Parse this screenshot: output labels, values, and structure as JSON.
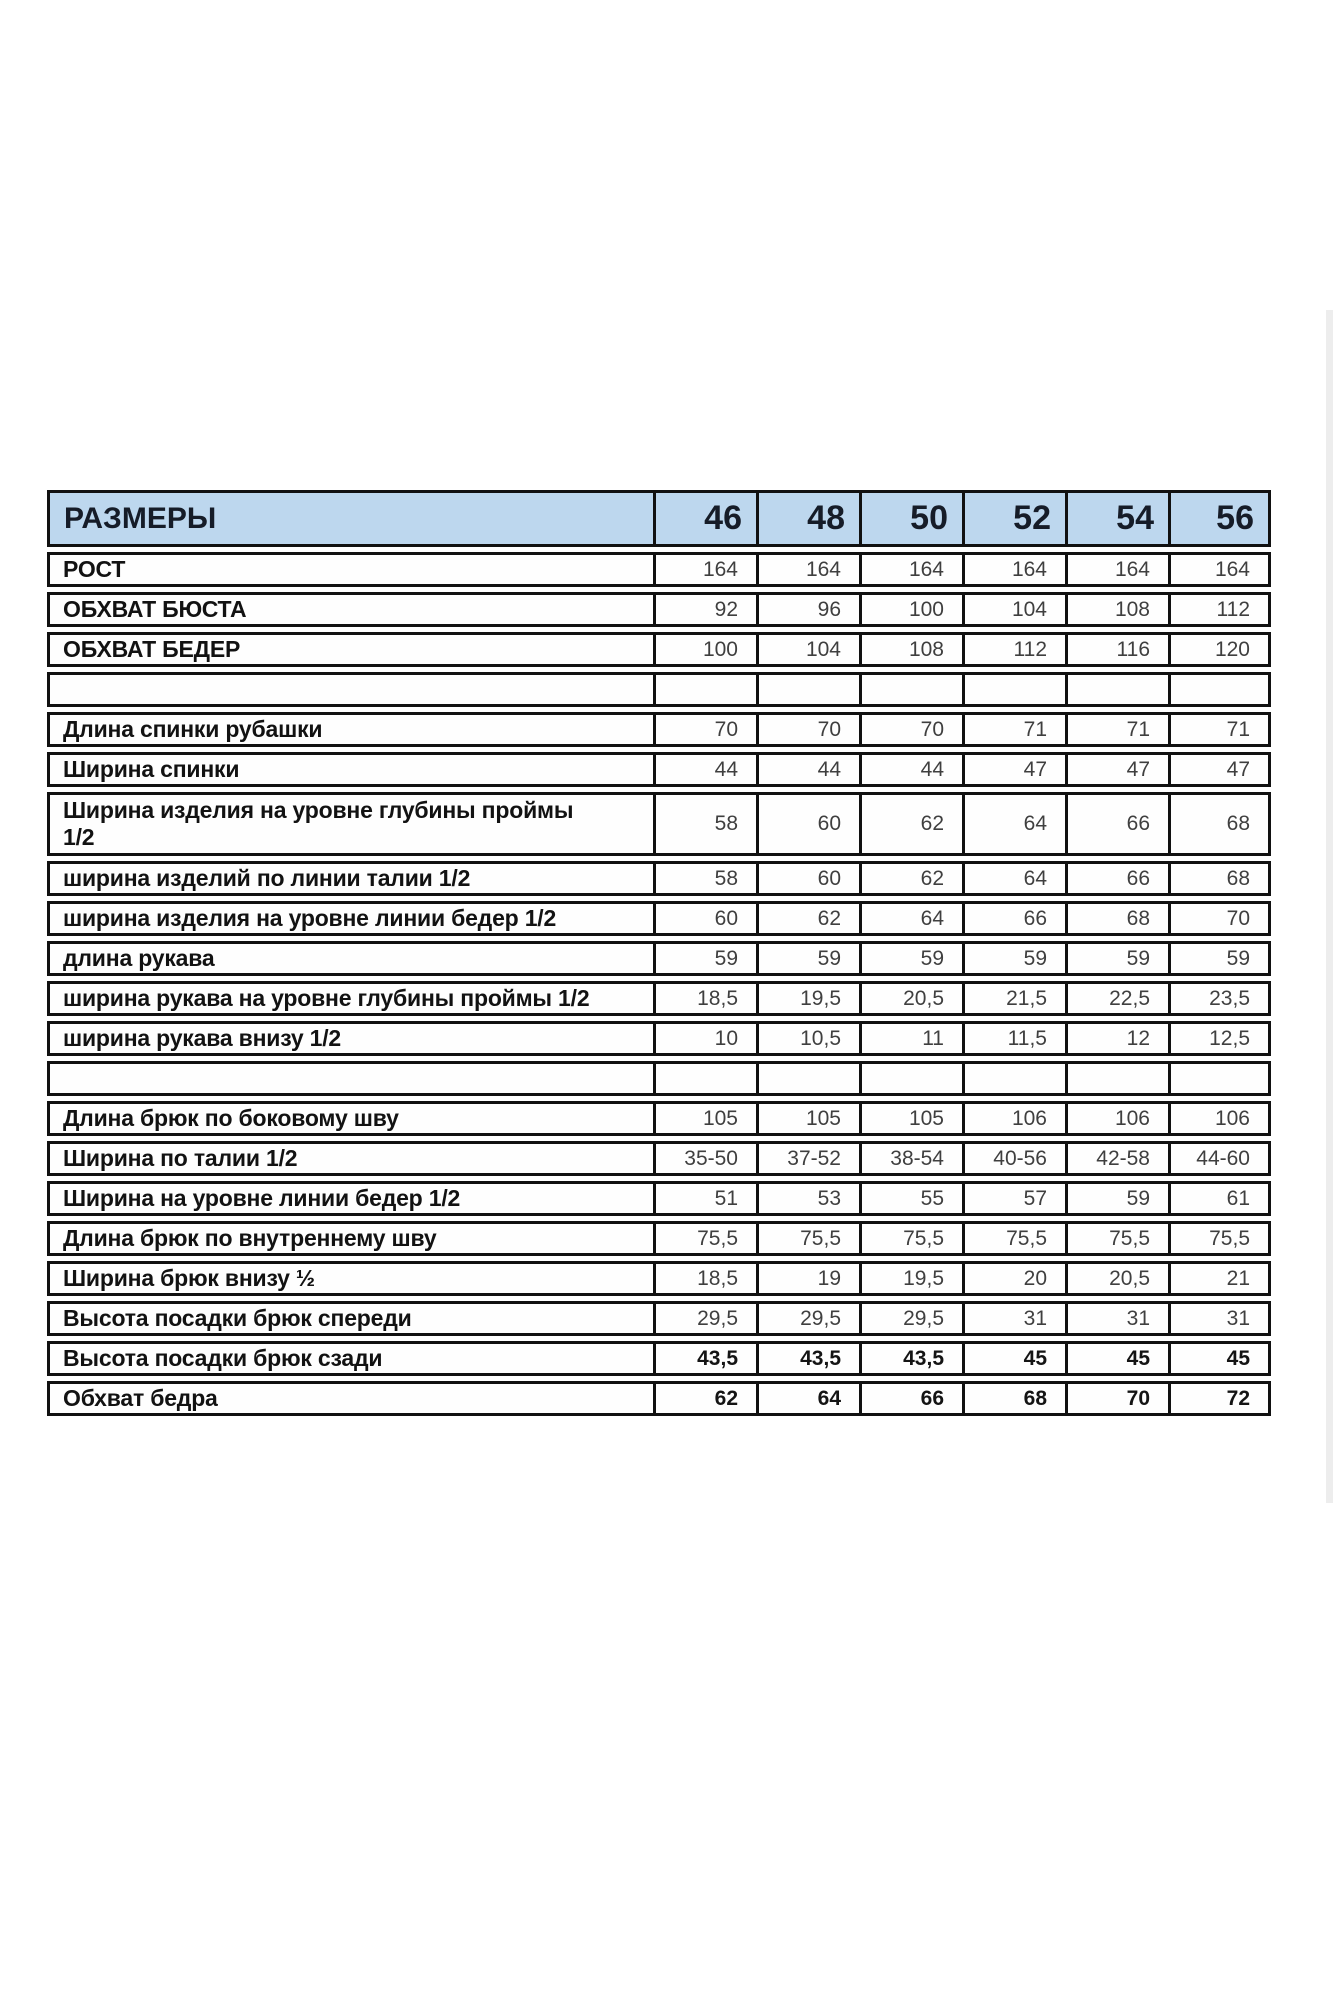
{
  "colors": {
    "page_bg": "#ffffff",
    "border": "#111111",
    "cell_bg": "#fefefe",
    "header_bg": "#bdd7ee",
    "header_text": "#161c28",
    "label_text": "#121212",
    "value_text": "#3f3f3f",
    "bold_value_text": "#141414",
    "artifact": "#ededed"
  },
  "chart_data": {
    "type": "table",
    "title": "РАЗМЕРЫ",
    "header": {
      "label": "РАЗМЕРЫ",
      "sizes": [
        "46",
        "48",
        "50",
        "52",
        "54",
        "56"
      ]
    },
    "rows": [
      {
        "label": "РОСТ",
        "values": [
          "164",
          "164",
          "164",
          "164",
          "164",
          "164"
        ]
      },
      {
        "label": "ОБХВАТ БЮСТА",
        "values": [
          "92",
          "96",
          "100",
          "104",
          "108",
          "112"
        ]
      },
      {
        "label": "ОБХВАТ БЕДЕР",
        "values": [
          "100",
          "104",
          "108",
          "112",
          "116",
          "120"
        ]
      },
      {
        "spacer": true,
        "label": "",
        "values": [
          "",
          "",
          "",
          "",
          "",
          ""
        ]
      },
      {
        "label": "Длина спинки рубашки",
        "values": [
          "70",
          "70",
          "70",
          "71",
          "71",
          "71"
        ]
      },
      {
        "label": "Ширина спинки",
        "values": [
          "44",
          "44",
          "44",
          "47",
          "47",
          "47"
        ]
      },
      {
        "label": "Ширина изделия на уровне глубины проймы\n1/2",
        "tall": true,
        "values": [
          "58",
          "60",
          "62",
          "64",
          "66",
          "68"
        ]
      },
      {
        "label": "ширина изделий по линии талии 1/2",
        "values": [
          "58",
          "60",
          "62",
          "64",
          "66",
          "68"
        ]
      },
      {
        "label": "ширина изделия на уровне линии бедер 1/2",
        "values": [
          "60",
          "62",
          "64",
          "66",
          "68",
          "70"
        ]
      },
      {
        "label": "длина рукава",
        "values": [
          "59",
          "59",
          "59",
          "59",
          "59",
          "59"
        ]
      },
      {
        "label": "ширина рукава на уровне глубины проймы 1/2",
        "values": [
          "18,5",
          "19,5",
          "20,5",
          "21,5",
          "22,5",
          "23,5"
        ]
      },
      {
        "label": "ширина рукава внизу 1/2",
        "values": [
          "10",
          "10,5",
          "11",
          "11,5",
          "12",
          "12,5"
        ]
      },
      {
        "spacer": true,
        "label": "",
        "values": [
          "",
          "",
          "",
          "",
          "",
          ""
        ]
      },
      {
        "label": "Длина брюк по боковому шву",
        "values": [
          "105",
          "105",
          "105",
          "106",
          "106",
          "106"
        ]
      },
      {
        "label": "Ширина по талии 1/2",
        "values": [
          "35-50",
          "37-52",
          "38-54",
          "40-56",
          "42-58",
          "44-60"
        ]
      },
      {
        "label": "Ширина на уровне линии бедер 1/2",
        "values": [
          "51",
          "53",
          "55",
          "57",
          "59",
          "61"
        ]
      },
      {
        "label": "Длина брюк по внутреннему шву",
        "values": [
          "75,5",
          "75,5",
          "75,5",
          "75,5",
          "75,5",
          "75,5"
        ]
      },
      {
        "label": "Ширина брюк внизу ½",
        "values": [
          "18,5",
          "19",
          "19,5",
          "20",
          "20,5",
          "21"
        ]
      },
      {
        "label": "Высота посадки брюк спереди",
        "values": [
          "29,5",
          "29,5",
          "29,5",
          "31",
          "31",
          "31"
        ]
      },
      {
        "label": "Высота посадки брюк сзади",
        "bold": true,
        "values": [
          "43,5",
          "43,5",
          "43,5",
          "45",
          "45",
          "45"
        ]
      },
      {
        "label": "Обхват бедра",
        "bold": true,
        "values": [
          "62",
          "64",
          "66",
          "68",
          "70",
          "72"
        ]
      }
    ]
  }
}
